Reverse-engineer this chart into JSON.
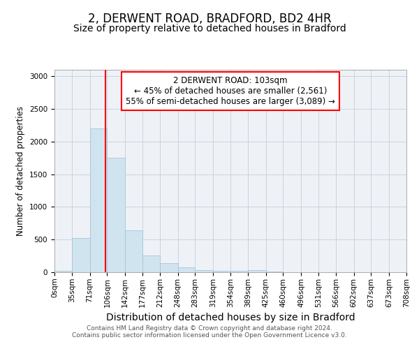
{
  "title1": "2, DERWENT ROAD, BRADFORD, BD2 4HR",
  "title2": "Size of property relative to detached houses in Bradford",
  "xlabel": "Distribution of detached houses by size in Bradford",
  "ylabel": "Number of detached properties",
  "bin_edges": [
    0,
    35,
    71,
    106,
    142,
    177,
    212,
    248,
    283,
    319,
    354,
    389,
    425,
    460,
    496,
    531,
    566,
    602,
    637,
    673,
    708
  ],
  "bar_heights": [
    25,
    520,
    2200,
    1750,
    640,
    260,
    140,
    70,
    35,
    25,
    20,
    30,
    10,
    5,
    0,
    0,
    0,
    0,
    0,
    0
  ],
  "bar_color": "#d0e4f0",
  "bar_edge_color": "#aac4d8",
  "red_line_x": 103,
  "ylim": [
    0,
    3100
  ],
  "yticks": [
    0,
    500,
    1000,
    1500,
    2000,
    2500,
    3000
  ],
  "annotation_title": "2 DERWENT ROAD: 103sqm",
  "annotation_line1": "← 45% of detached houses are smaller (2,561)",
  "annotation_line2": "55% of semi-detached houses are larger (3,089) →",
  "footer1": "Contains HM Land Registry data © Crown copyright and database right 2024.",
  "footer2": "Contains public sector information licensed under the Open Government Licence v3.0.",
  "bg_color": "#ffffff",
  "plot_bg_color": "#eef2f7",
  "grid_color": "#c8d4e0",
  "title1_fontsize": 12,
  "title2_fontsize": 10,
  "xlabel_fontsize": 10,
  "ylabel_fontsize": 8.5,
  "tick_fontsize": 7.5,
  "footer_fontsize": 6.5,
  "annotation_fontsize": 8.5
}
